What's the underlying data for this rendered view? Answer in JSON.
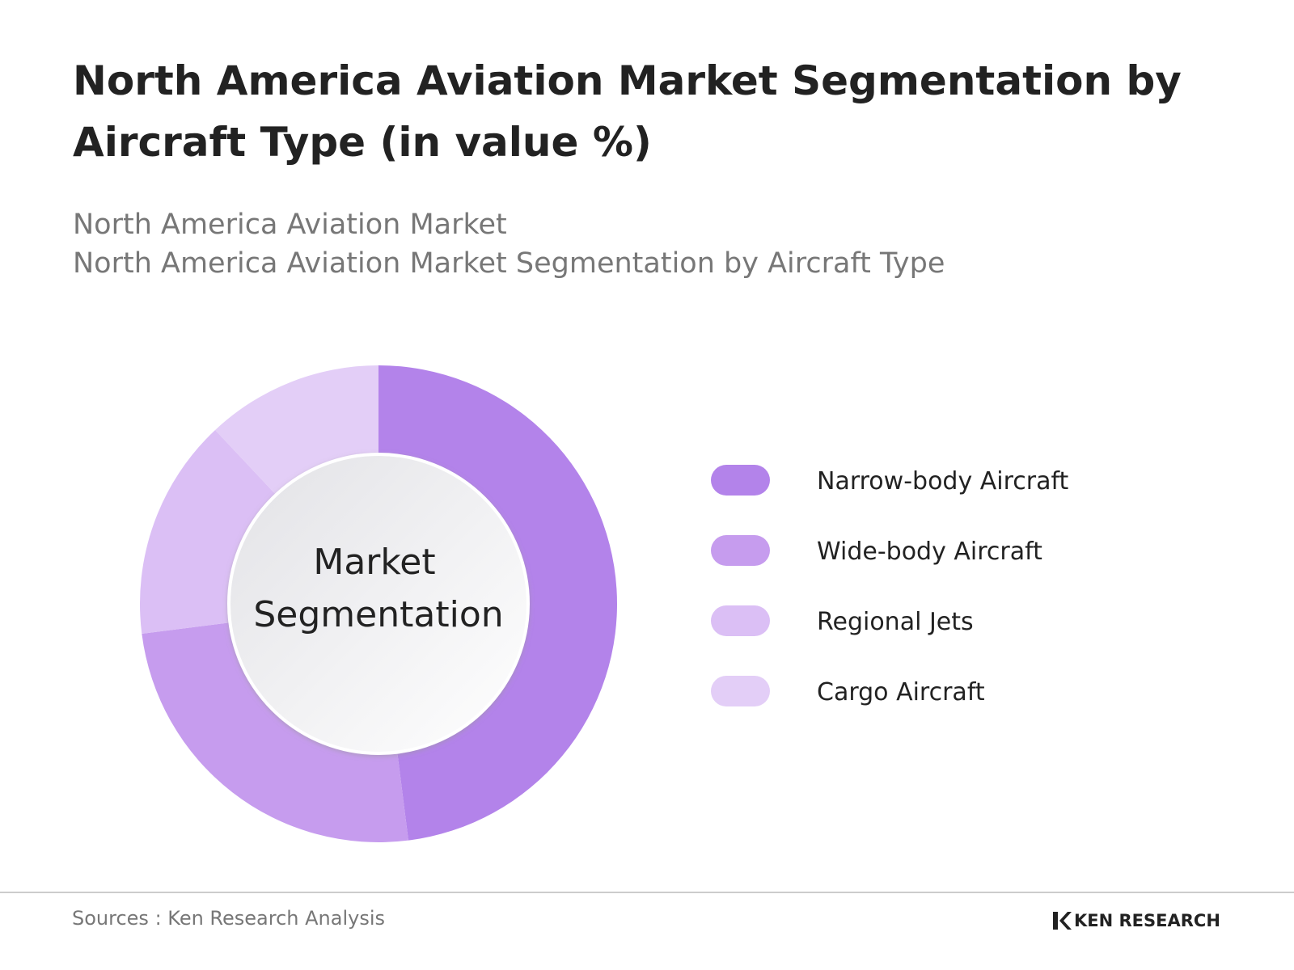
{
  "chart_data": {
    "type": "donut",
    "title": "North America Aviation Market Segmentation by Aircraft Type (in value %)",
    "subtitle": [
      "North America Aviation Market",
      "North America Aviation Market Segmentation by Aircraft Type"
    ],
    "center_label": [
      "Market",
      "Segmentation"
    ],
    "categories": [
      "Narrow-body Aircraft",
      "Wide-body Aircraft",
      "Regional Jets",
      "Cargo Aircraft"
    ],
    "values": [
      48,
      25,
      15,
      12
    ],
    "colors": [
      "#b383ea",
      "#c69cee",
      "#dbbff5",
      "#e3cef7"
    ],
    "source": "Sources : Ken Research Analysis",
    "logo": "KEN RESEARCH"
  }
}
